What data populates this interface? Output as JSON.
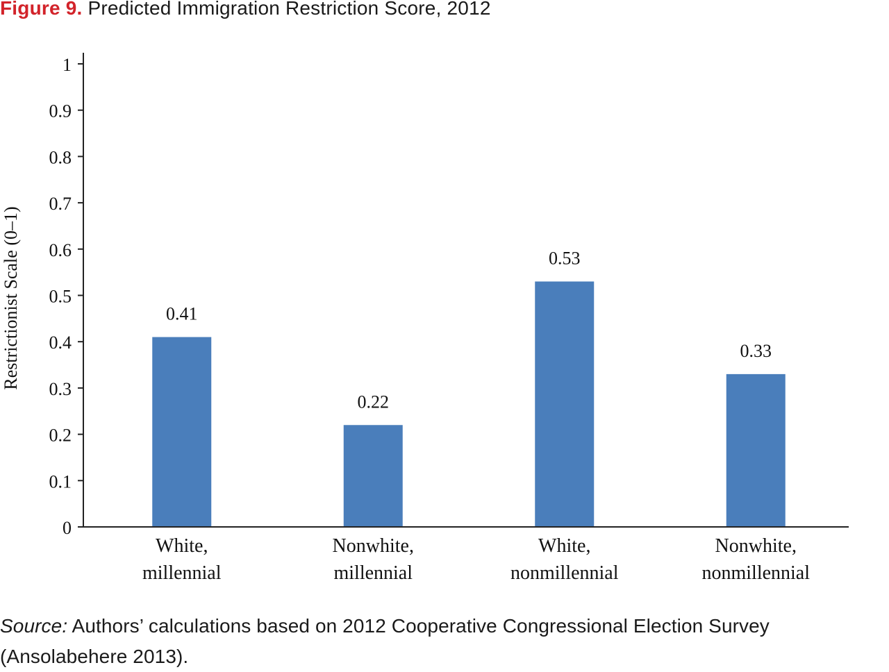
{
  "figure": {
    "label": "Figure 9.",
    "title": "Predicted Immigration Restriction Score, 2012"
  },
  "source": {
    "label": "Source:",
    "text": "Authors’ calculations based on 2012 Cooperative Congressional Election Survey (Ansolabehere 2013)."
  },
  "colors": {
    "bar": "#4a7ebb",
    "figure_label": "#d2232a",
    "axis": "#222222"
  },
  "chart_data": {
    "type": "bar",
    "title": "",
    "xlabel": "",
    "ylabel": "Restrictionist Scale (0–1)",
    "ylim": [
      0,
      1
    ],
    "y_ticks": [
      "0",
      "0.1",
      "0.2",
      "0.3",
      "0.4",
      "0.5",
      "0.6",
      "0.7",
      "0.8",
      "0.9",
      "1"
    ],
    "categories": [
      [
        "White,",
        "millennial"
      ],
      [
        "Nonwhite,",
        "millennial"
      ],
      [
        "White,",
        "nonmillennial"
      ],
      [
        "Nonwhite,",
        "nonmillennial"
      ]
    ],
    "values": [
      0.41,
      0.22,
      0.53,
      0.33
    ],
    "data_labels": [
      "0.41",
      "0.22",
      "0.53",
      "0.33"
    ],
    "grid": false,
    "legend": "none"
  }
}
